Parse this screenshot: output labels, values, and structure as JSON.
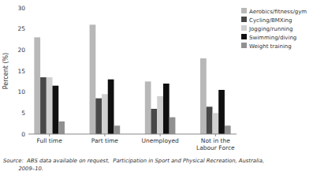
{
  "chart_data": {
    "type": "bar",
    "categories": [
      "Full time",
      "Part time",
      "Unemployed",
      "Not in the Labour Force"
    ],
    "series": [
      {
        "name": "Aerobics/fitness/gym",
        "color": "#b8b8b8",
        "values": [
          23,
          26,
          12.5,
          18
        ]
      },
      {
        "name": "Cycling/BMXing",
        "color": "#484848",
        "values": [
          13.5,
          8.5,
          6,
          6.5
        ]
      },
      {
        "name": "Jogging/running",
        "color": "#d0d0d0",
        "values": [
          13.5,
          9.5,
          9,
          5
        ]
      },
      {
        "name": "Swimming/diving",
        "color": "#101010",
        "values": [
          11.5,
          13,
          12,
          10.5
        ]
      },
      {
        "name": "Weight training",
        "color": "#909090",
        "values": [
          3,
          2,
          4,
          2
        ]
      }
    ],
    "ylabel": "Percent (%)",
    "ylim": [
      0,
      30
    ],
    "yticks": [
      0,
      5,
      10,
      15,
      20,
      25,
      30
    ],
    "grid": false,
    "legend": "right",
    "annotations": [
      "Source:  ABS data available on request,  Participation in Sport and Physical Recreation, Australia,",
      "         2009–10."
    ]
  }
}
